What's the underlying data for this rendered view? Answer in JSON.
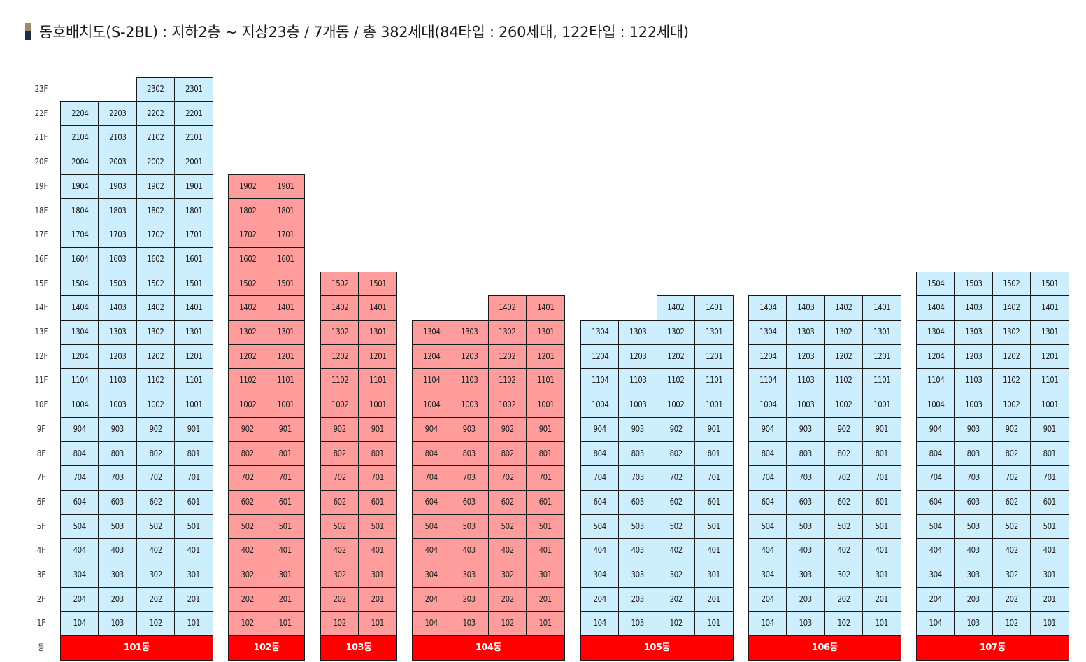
{
  "header": {
    "title": "동호배치도(S-2BL) : 지하2층 ~ 지상23층 / 7개동 / 총 382세대(84타입 : 260세대, 122타입 : 122세대)"
  },
  "colors": {
    "type_84": "#cceefd",
    "type_122": "#ff9d9d",
    "building_label": "#ff0000"
  },
  "floor_axis": {
    "floors": [
      "23F",
      "22F",
      "21F",
      "20F",
      "19F",
      "18F",
      "17F",
      "16F",
      "15F",
      "14F",
      "13F",
      "12F",
      "11F",
      "10F",
      "9F",
      "8F",
      "7F",
      "6F",
      "5F",
      "4F",
      "3F",
      "2F",
      "1F"
    ],
    "bottom_label": "동"
  },
  "buildings": [
    {
      "label": "101동",
      "type": "84",
      "columns": 4,
      "col_floors": [
        22,
        22,
        23,
        23
      ]
    },
    {
      "label": "102동",
      "type": "122",
      "columns": 2,
      "col_floors": [
        19,
        19
      ]
    },
    {
      "label": "103동",
      "type": "122",
      "columns": 2,
      "col_floors": [
        15,
        15
      ]
    },
    {
      "label": "104동",
      "type": "122",
      "columns": 4,
      "col_floors": [
        13,
        13,
        14,
        14
      ]
    },
    {
      "label": "105동",
      "type": "84",
      "columns": 4,
      "col_floors": [
        13,
        13,
        14,
        14
      ]
    },
    {
      "label": "106동",
      "type": "84",
      "columns": 4,
      "col_floors": [
        14,
        14,
        14,
        14
      ]
    },
    {
      "label": "107동",
      "type": "84",
      "columns": 4,
      "col_floors": [
        15,
        15,
        15,
        15
      ]
    }
  ]
}
